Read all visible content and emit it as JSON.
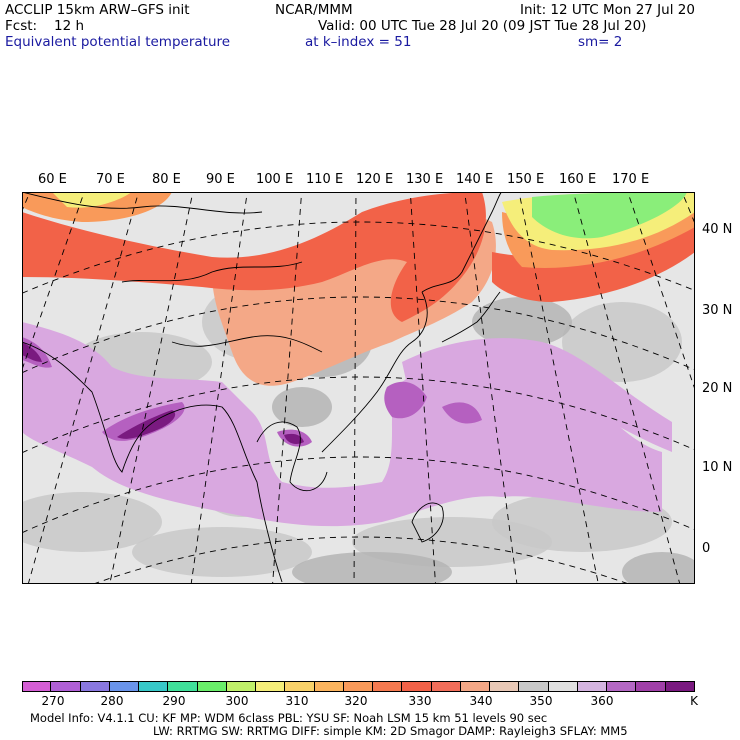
{
  "header": {
    "model_title": "ACCLIP 15km ARW–GFS init",
    "center": "NCAR/MMM",
    "init": "Init: 12 UTC Mon 27 Jul 20",
    "fcst_label": "Fcst:",
    "fcst_value": "12 h",
    "valid": "Valid: 00 UTC Tue 28 Jul 20 (09 JST Tue 28 Jul 20)",
    "field": "Equivalent potential temperature",
    "level": "at k–index =  51",
    "smoothing": "sm= 2"
  },
  "map": {
    "lon_labels": [
      "60 E",
      "70 E",
      "80 E",
      "90 E",
      "100 E",
      "110 E",
      "120 E",
      "130 E",
      "140 E",
      "150 E",
      "160 E",
      "170 E"
    ],
    "lat_labels": [
      "40 N",
      "30 N",
      "20 N",
      "10 N",
      "0"
    ],
    "colors": {
      "background_low": "#e6e6e6",
      "gray_mid": "#c8c8c8",
      "gray_dark": "#b4b4b4",
      "purple_light": "#d9a8e0",
      "purple_mid": "#b560c0",
      "purple_dark": "#7a1a80",
      "salmon": "#f4a887",
      "red": "#f26248",
      "orange": "#f99a5a",
      "yellow": "#f5ee7a",
      "green": "#8aee7a"
    }
  },
  "colorbar": {
    "labels": [
      "270",
      "280",
      "290",
      "300",
      "310",
      "320",
      "330",
      "340",
      "350",
      "360",
      "K"
    ],
    "colors": [
      "#d45ed4",
      "#b060d6",
      "#8a78e0",
      "#6a94ea",
      "#38c8c8",
      "#40e09a",
      "#6aee6a",
      "#c0f06a",
      "#f5ee7a",
      "#f9d26a",
      "#fbb45e",
      "#f99a5a",
      "#f57a50",
      "#f26248",
      "#f26e5a",
      "#f4a887",
      "#e8c8b6",
      "#c8c8c8",
      "#e0e0e0",
      "#d4b4e0",
      "#b468c4",
      "#a040a8",
      "#7a1a80"
    ]
  },
  "footer": {
    "line1": "Model Info: V4.1.1     CU: KF      MP: WDM 6class   PBL: YSU      SF: Noah LSM     15 km    51 levels    90 sec",
    "line2": "LW: RRTMG     SW: RRTMG   DIFF: simple KM: 2D Smagor DAMP: Rayleigh3  SFLAY: MM5"
  }
}
